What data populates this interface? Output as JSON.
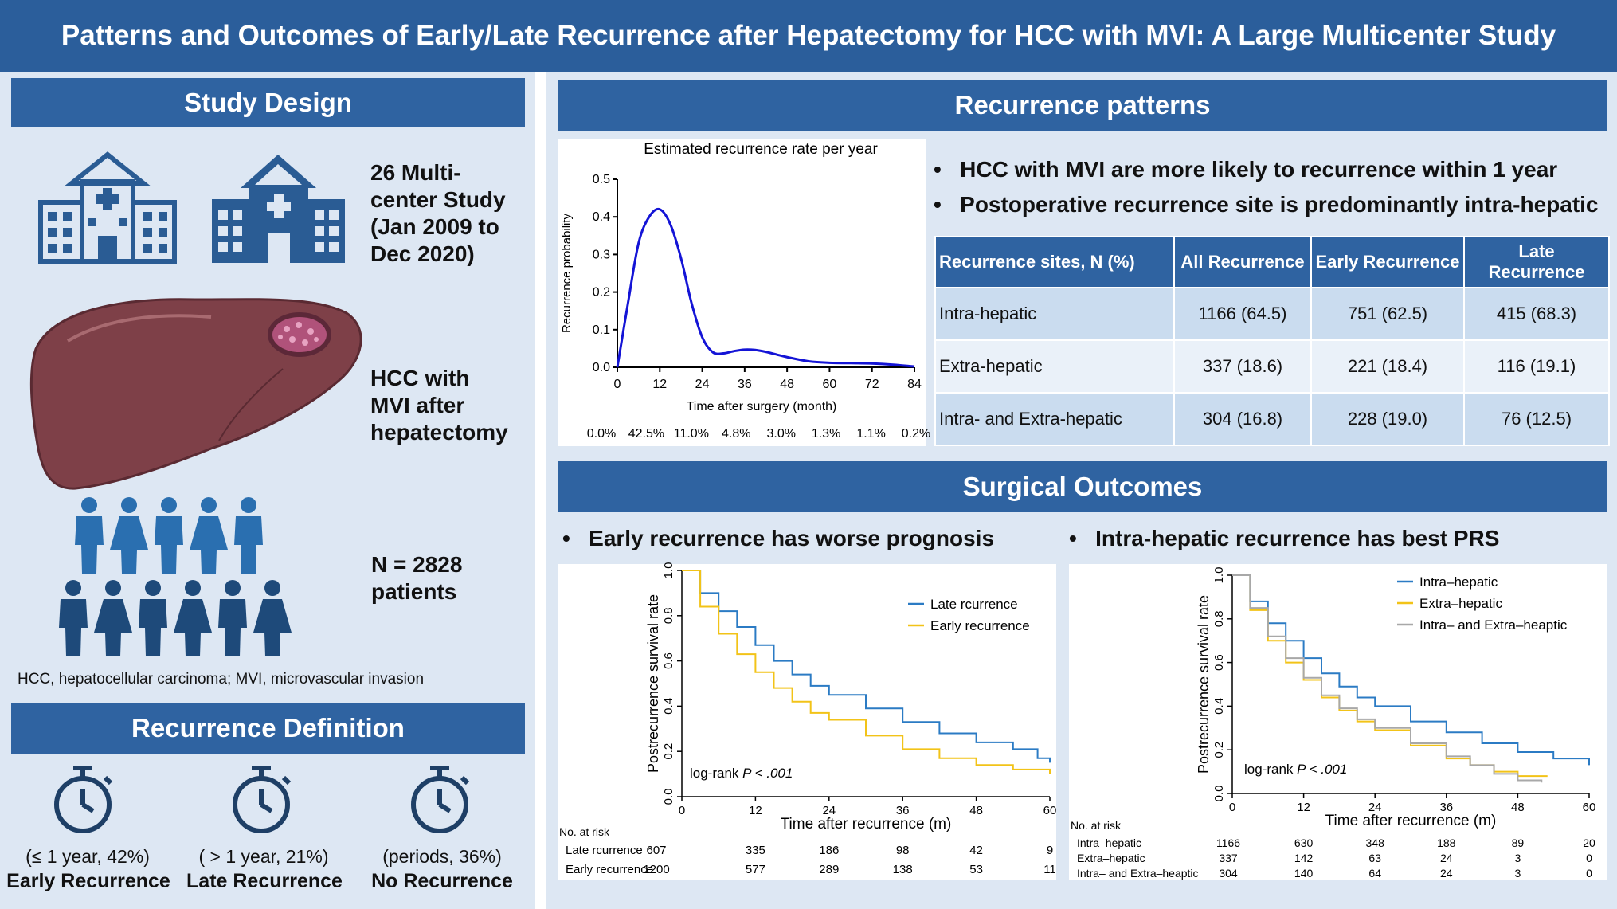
{
  "title": "Patterns and Outcomes of Early/Late Recurrence after Hepatectomy for HCC with MVI: A Large Multicenter Study",
  "study_design": {
    "heading": "Study Design",
    "multicenter_text": "26 Multi-\ncenter Study\n(Jan 2009 to\nDec 2020)",
    "hcc_text": "HCC with\nMVI after\nhepatectomy",
    "n_text": "N = 2828\npatients",
    "abbrev_note": "HCC, hepatocellular carcinoma; MVI, microvascular invasion"
  },
  "recurrence_definition": {
    "heading": "Recurrence Definition",
    "items": [
      {
        "period": "(≤ 1 year, 42%)",
        "label": "Early Recurrence"
      },
      {
        "period": "( > 1 year, 21%)",
        "label": "Late Recurrence"
      },
      {
        "period": "(periods, 36%)",
        "label": "No Recurrence"
      }
    ]
  },
  "recurrence_patterns": {
    "heading": "Recurrence patterns",
    "bullets": [
      "HCC with MVI are more likely to recurrence within 1 year",
      "Postoperative recurrence site is predominantly intra-hepatic"
    ],
    "table": {
      "headers": [
        "Recurrence sites, N (%)",
        "All Recurrence",
        "Early Recurrence",
        "Late Recurrence"
      ],
      "rows": [
        [
          "Intra-hepatic",
          "1166 (64.5)",
          "751 (62.5)",
          "415 (68.3)"
        ],
        [
          "Extra-hepatic",
          "337 (18.6)",
          "221 (18.4)",
          "116 (19.1)"
        ],
        [
          "Intra- and Extra-hepatic",
          "304 (16.8)",
          "228 (19.0)",
          "76 (12.5)"
        ]
      ]
    }
  },
  "surgical_outcomes": {
    "heading": "Surgical Outcomes",
    "bullets": [
      "Early recurrence has worse prognosis",
      "Intra-hepatic recurrence has best PRS"
    ]
  },
  "colors": {
    "banner": "#2f63a1",
    "panel": "#dde7f3",
    "blue_line": "#2b7bc4",
    "yellow_line": "#f2c318",
    "gray_line": "#a8a8a8",
    "curve": "#1414d6",
    "icon": "#2a5c94"
  },
  "chart_data": [
    {
      "type": "line",
      "title": "Estimated recurrence rate per year",
      "xlabel": "Time after surgery (month)",
      "ylabel": "Recurrence probability",
      "xlim": [
        0,
        84
      ],
      "ylim": [
        0,
        0.5
      ],
      "x_ticks": [
        "0",
        "12",
        "24",
        "36",
        "48",
        "60",
        "72",
        "84"
      ],
      "y_ticks": [
        "0.0",
        "0.1",
        "0.2",
        "0.3",
        "0.4",
        "0.5"
      ],
      "x": [
        0,
        3,
        6,
        9,
        12,
        15,
        18,
        21,
        24,
        27,
        30,
        33,
        36,
        39,
        42,
        45,
        48,
        54,
        60,
        66,
        72,
        78,
        84
      ],
      "y": [
        0.0,
        0.17,
        0.33,
        0.4,
        0.42,
        0.38,
        0.29,
        0.17,
        0.08,
        0.04,
        0.037,
        0.043,
        0.047,
        0.046,
        0.041,
        0.034,
        0.027,
        0.016,
        0.012,
        0.011,
        0.01,
        0.007,
        0.002
      ],
      "annual_rates": [
        "0.0%",
        "42.5%",
        "11.0%",
        "4.8%",
        "3.0%",
        "1.3%",
        "1.1%",
        "0.2%"
      ]
    },
    {
      "type": "line",
      "title": "",
      "xlabel": "Time after recurrence (m)",
      "ylabel": "Postrecurrence survival rate",
      "xlim": [
        0,
        60
      ],
      "ylim": [
        0,
        1
      ],
      "x_ticks": [
        "0",
        "12",
        "24",
        "36",
        "48",
        "60"
      ],
      "y_ticks": [
        "0.0",
        "0.2",
        "0.4",
        "0.6",
        "0.8",
        "1.0"
      ],
      "annotation": "log-rank",
      "annotation_p": "P < .001",
      "series": [
        {
          "name": "Late rcurrence",
          "x": [
            0,
            3,
            6,
            9,
            12,
            15,
            18,
            21,
            24,
            30,
            36,
            42,
            48,
            54,
            58,
            60
          ],
          "y": [
            1.0,
            0.9,
            0.82,
            0.75,
            0.67,
            0.6,
            0.54,
            0.49,
            0.45,
            0.39,
            0.33,
            0.28,
            0.24,
            0.21,
            0.17,
            0.15
          ]
        },
        {
          "name": "Early recurrence",
          "x": [
            0,
            3,
            6,
            9,
            12,
            15,
            18,
            21,
            24,
            30,
            36,
            42,
            48,
            54,
            60
          ],
          "y": [
            1.0,
            0.84,
            0.72,
            0.63,
            0.55,
            0.48,
            0.42,
            0.37,
            0.34,
            0.27,
            0.21,
            0.17,
            0.14,
            0.12,
            0.1
          ]
        }
      ],
      "at_risk": {
        "title": "No. at risk",
        "rows": [
          {
            "label": "Late rcurrence",
            "values": [
              "607",
              "335",
              "186",
              "98",
              "42",
              "9"
            ]
          },
          {
            "label": "Early recurrence",
            "values": [
              "1200",
              "577",
              "289",
              "138",
              "53",
              "11"
            ]
          }
        ]
      }
    },
    {
      "type": "line",
      "title": "",
      "xlabel": "Time after recurrence (m)",
      "ylabel": "Postrecurrence survival rate",
      "xlim": [
        0,
        60
      ],
      "ylim": [
        0,
        1
      ],
      "x_ticks": [
        "0",
        "12",
        "24",
        "36",
        "48",
        "60"
      ],
      "y_ticks": [
        "0.0",
        "0.2",
        "0.4",
        "0.6",
        "0.8",
        "1.0"
      ],
      "annotation": "log-rank",
      "annotation_p": "P < .001",
      "series": [
        {
          "name": "Intra–hepatic",
          "x": [
            0,
            3,
            6,
            9,
            12,
            15,
            18,
            21,
            24,
            30,
            36,
            42,
            48,
            54,
            60
          ],
          "y": [
            1.0,
            0.88,
            0.78,
            0.7,
            0.62,
            0.55,
            0.49,
            0.44,
            0.4,
            0.33,
            0.28,
            0.23,
            0.19,
            0.16,
            0.13
          ]
        },
        {
          "name": "Extra–hepatic",
          "x": [
            0,
            3,
            6,
            9,
            12,
            15,
            18,
            21,
            24,
            30,
            36,
            40,
            44,
            48,
            53
          ],
          "y": [
            1.0,
            0.84,
            0.7,
            0.6,
            0.52,
            0.44,
            0.38,
            0.33,
            0.29,
            0.22,
            0.16,
            0.13,
            0.1,
            0.08,
            0.08
          ]
        },
        {
          "name": "Intra– and Extra–heaptic",
          "x": [
            0,
            3,
            6,
            9,
            12,
            15,
            18,
            21,
            24,
            30,
            36,
            40,
            44,
            48,
            52
          ],
          "y": [
            1.0,
            0.85,
            0.72,
            0.62,
            0.53,
            0.45,
            0.39,
            0.34,
            0.3,
            0.23,
            0.17,
            0.13,
            0.09,
            0.06,
            0.05
          ]
        }
      ],
      "at_risk": {
        "title": "No. at risk",
        "rows": [
          {
            "label": "Intra–hepatic",
            "values": [
              "1166",
              "630",
              "348",
              "188",
              "89",
              "20"
            ]
          },
          {
            "label": "Extra–hepatic",
            "values": [
              "337",
              "142",
              "63",
              "24",
              "3",
              "0"
            ]
          },
          {
            "label": "Intra– and Extra–heaptic",
            "values": [
              "304",
              "140",
              "64",
              "24",
              "3",
              "0"
            ]
          }
        ]
      }
    }
  ]
}
